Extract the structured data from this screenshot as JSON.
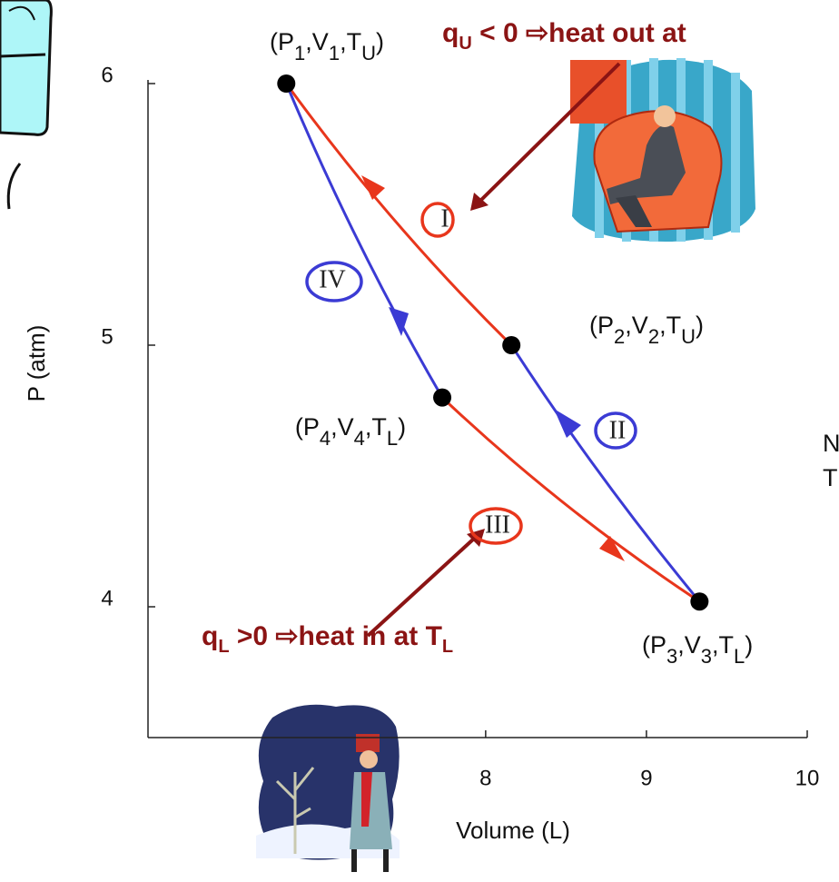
{
  "chart_data": {
    "type": "line",
    "x_label": "Volume (L)",
    "y_label": "P (atm)",
    "xlim": [
      5.9,
      10
    ],
    "ylim": [
      3.5,
      6
    ],
    "xticks": [
      8,
      9,
      10
    ],
    "yticks": [
      4,
      5,
      6
    ],
    "series": [
      {
        "name": "I",
        "color": "#e8361c",
        "x": [
          8.16,
          6.76
        ],
        "values": [
          5.0,
          6
        ]
      },
      {
        "name": "II",
        "color": "#3b3bd4",
        "x": [
          9.33,
          8.16
        ],
        "values": [
          4.02,
          5.0
        ]
      },
      {
        "name": "III",
        "color": "#e8361c",
        "x": [
          7.73,
          9.33
        ],
        "values": [
          4.8,
          4.02
        ]
      },
      {
        "name": "IV",
        "color": "#3b3bd4",
        "x": [
          6.76,
          7.73
        ],
        "values": [
          6,
          4.8
        ]
      }
    ],
    "points": [
      {
        "label": [
          "(P",
          "1",
          ",V",
          "1",
          ",T",
          "U",
          ")"
        ],
        "x": 6.76,
        "y": 6
      },
      {
        "label": [
          "(P",
          "2",
          ",V",
          "2",
          ",T",
          "U",
          ")"
        ],
        "x": 8.16,
        "y": 5.0
      },
      {
        "label": [
          "(P",
          "3",
          ",V",
          "3",
          ",T",
          "L",
          ")"
        ],
        "x": 9.33,
        "y": 4.02
      },
      {
        "label": [
          "(P",
          "4",
          ",V",
          "4",
          ",T",
          "L",
          ")"
        ],
        "x": 7.73,
        "y": 4.8
      }
    ],
    "annotations": [
      {
        "text": [
          "q",
          "U",
          " < 0 ⇨heat out at"
        ]
      },
      {
        "text": [
          "q",
          "L",
          " >0 ⇨heat in at T",
          "L"
        ]
      },
      {
        "text": [
          "N"
        ]
      },
      {
        "text": [
          "T"
        ]
      }
    ]
  }
}
